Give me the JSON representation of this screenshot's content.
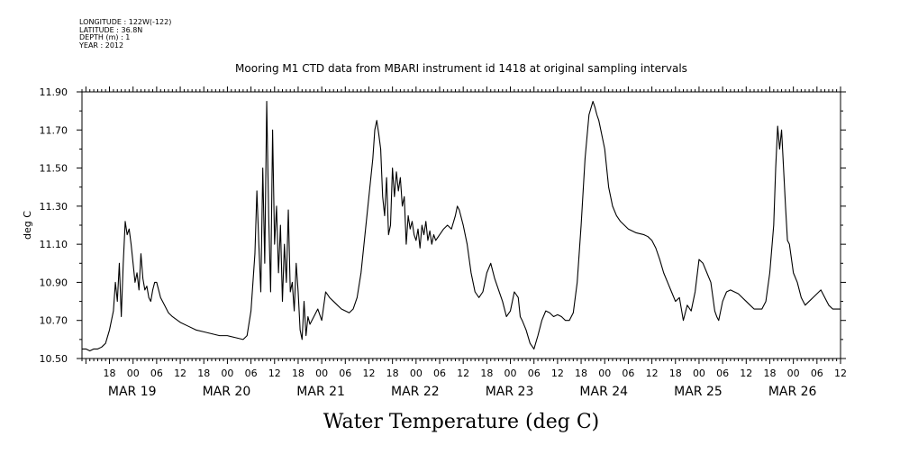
{
  "meta": {
    "longitude": "LONGITUDE : 122W(-122)",
    "latitude": "LATITUDE : 36.8N",
    "depth": "DEPTH (m) : 1",
    "year": "YEAR : 2012"
  },
  "chart_data": {
    "type": "line",
    "title": "Mooring M1 CTD data from MBARI instrument id 1418 at original sampling intervals",
    "xlabel": "Water Temperature (deg C)",
    "ylabel": "deg C",
    "ylim": [
      10.5,
      11.9
    ],
    "yticks": [
      "10.50",
      "10.70",
      "10.90",
      "11.10",
      "11.30",
      "11.50",
      "11.70",
      "11.90"
    ],
    "xlim_hours_from_mar19_00": [
      -13,
      180
    ],
    "xtick_hours": [
      "18",
      "00",
      "06",
      "12",
      "18",
      "00",
      "06",
      "12",
      "18",
      "00",
      "06",
      "12",
      "18",
      "00",
      "06",
      "12",
      "18",
      "00",
      "06",
      "12",
      "18",
      "00",
      "06",
      "12",
      "18",
      "00",
      "06",
      "12",
      "18",
      "00",
      "06",
      "12"
    ],
    "day_labels": [
      "MAR 19",
      "MAR 20",
      "MAR 21",
      "MAR 22",
      "MAR 23",
      "MAR 24",
      "MAR 25",
      "MAR 26"
    ],
    "series": [
      {
        "color": "#000000",
        "points": [
          [
            -13,
            10.55
          ],
          [
            -12,
            10.55
          ],
          [
            -11,
            10.54
          ],
          [
            -10,
            10.55
          ],
          [
            -9,
            10.55
          ],
          [
            -8,
            10.56
          ],
          [
            -7,
            10.58
          ],
          [
            -6,
            10.65
          ],
          [
            -5,
            10.75
          ],
          [
            -4.5,
            10.9
          ],
          [
            -4,
            10.8
          ],
          [
            -3.5,
            11.0
          ],
          [
            -3,
            10.72
          ],
          [
            -2.5,
            11.0
          ],
          [
            -2,
            11.22
          ],
          [
            -1.5,
            11.15
          ],
          [
            -1,
            11.18
          ],
          [
            -0.5,
            11.1
          ],
          [
            0,
            11.0
          ],
          [
            0.5,
            10.9
          ],
          [
            1,
            10.95
          ],
          [
            1.5,
            10.86
          ],
          [
            2,
            11.05
          ],
          [
            2.5,
            10.92
          ],
          [
            3,
            10.86
          ],
          [
            3.5,
            10.88
          ],
          [
            4,
            10.82
          ],
          [
            4.5,
            10.8
          ],
          [
            5,
            10.86
          ],
          [
            5.5,
            10.9
          ],
          [
            6,
            10.9
          ],
          [
            7,
            10.82
          ],
          [
            8,
            10.78
          ],
          [
            9,
            10.74
          ],
          [
            10,
            10.72
          ],
          [
            12,
            10.69
          ],
          [
            14,
            10.67
          ],
          [
            16,
            10.65
          ],
          [
            18,
            10.64
          ],
          [
            20,
            10.63
          ],
          [
            22,
            10.62
          ],
          [
            24,
            10.62
          ],
          [
            26,
            10.61
          ],
          [
            28,
            10.6
          ],
          [
            29,
            10.62
          ],
          [
            30,
            10.75
          ],
          [
            30.5,
            10.9
          ],
          [
            31,
            11.05
          ],
          [
            31.5,
            11.38
          ],
          [
            32,
            11.1
          ],
          [
            32.5,
            10.85
          ],
          [
            33,
            11.5
          ],
          [
            33.5,
            11.0
          ],
          [
            34,
            11.85
          ],
          [
            34.5,
            11.25
          ],
          [
            35,
            10.85
          ],
          [
            35.5,
            11.7
          ],
          [
            36,
            11.1
          ],
          [
            36.5,
            11.3
          ],
          [
            37,
            10.95
          ],
          [
            37.5,
            11.2
          ],
          [
            38,
            10.8
          ],
          [
            38.5,
            11.1
          ],
          [
            39,
            10.9
          ],
          [
            39.5,
            11.28
          ],
          [
            40,
            10.85
          ],
          [
            40.5,
            10.9
          ],
          [
            41,
            10.75
          ],
          [
            41.5,
            11.0
          ],
          [
            42,
            10.85
          ],
          [
            42.5,
            10.65
          ],
          [
            43,
            10.6
          ],
          [
            43.5,
            10.8
          ],
          [
            44,
            10.62
          ],
          [
            44.5,
            10.72
          ],
          [
            45,
            10.68
          ],
          [
            46,
            10.72
          ],
          [
            47,
            10.76
          ],
          [
            48,
            10.7
          ],
          [
            49,
            10.85
          ],
          [
            50,
            10.82
          ],
          [
            51,
            10.8
          ],
          [
            52,
            10.78
          ],
          [
            53,
            10.76
          ],
          [
            54,
            10.75
          ],
          [
            55,
            10.74
          ],
          [
            56,
            10.76
          ],
          [
            57,
            10.82
          ],
          [
            58,
            10.95
          ],
          [
            59,
            11.15
          ],
          [
            60,
            11.35
          ],
          [
            61,
            11.55
          ],
          [
            61.5,
            11.7
          ],
          [
            62,
            11.75
          ],
          [
            62.5,
            11.68
          ],
          [
            63,
            11.6
          ],
          [
            63.5,
            11.35
          ],
          [
            64,
            11.25
          ],
          [
            64.5,
            11.45
          ],
          [
            65,
            11.15
          ],
          [
            65.5,
            11.2
          ],
          [
            66,
            11.5
          ],
          [
            66.5,
            11.35
          ],
          [
            67,
            11.48
          ],
          [
            67.5,
            11.38
          ],
          [
            68,
            11.45
          ],
          [
            68.5,
            11.3
          ],
          [
            69,
            11.35
          ],
          [
            69.5,
            11.1
          ],
          [
            70,
            11.25
          ],
          [
            70.5,
            11.18
          ],
          [
            71,
            11.22
          ],
          [
            71.5,
            11.15
          ],
          [
            72,
            11.12
          ],
          [
            72.5,
            11.18
          ],
          [
            73,
            11.08
          ],
          [
            73.5,
            11.2
          ],
          [
            74,
            11.15
          ],
          [
            74.5,
            11.22
          ],
          [
            75,
            11.12
          ],
          [
            75.5,
            11.17
          ],
          [
            76,
            11.1
          ],
          [
            76.5,
            11.15
          ],
          [
            77,
            11.12
          ],
          [
            78,
            11.15
          ],
          [
            79,
            11.18
          ],
          [
            80,
            11.2
          ],
          [
            81,
            11.18
          ],
          [
            82,
            11.25
          ],
          [
            82.5,
            11.3
          ],
          [
            83,
            11.28
          ],
          [
            84,
            11.2
          ],
          [
            85,
            11.1
          ],
          [
            86,
            10.95
          ],
          [
            87,
            10.85
          ],
          [
            88,
            10.82
          ],
          [
            89,
            10.85
          ],
          [
            90,
            10.95
          ],
          [
            91,
            11.0
          ],
          [
            92,
            10.92
          ],
          [
            93,
            10.86
          ],
          [
            94,
            10.8
          ],
          [
            95,
            10.72
          ],
          [
            96,
            10.75
          ],
          [
            97,
            10.85
          ],
          [
            98,
            10.82
          ],
          [
            98.5,
            10.72
          ],
          [
            99,
            10.7
          ],
          [
            100,
            10.65
          ],
          [
            101,
            10.58
          ],
          [
            102,
            10.55
          ],
          [
            103,
            10.62
          ],
          [
            104,
            10.7
          ],
          [
            105,
            10.75
          ],
          [
            106,
            10.74
          ],
          [
            107,
            10.72
          ],
          [
            108,
            10.73
          ],
          [
            109,
            10.72
          ],
          [
            110,
            10.7
          ],
          [
            111,
            10.7
          ],
          [
            112,
            10.74
          ],
          [
            113,
            10.9
          ],
          [
            114,
            11.2
          ],
          [
            115,
            11.55
          ],
          [
            116,
            11.78
          ],
          [
            117,
            11.85
          ],
          [
            117.5,
            11.82
          ],
          [
            118,
            11.78
          ],
          [
            118.5,
            11.75
          ],
          [
            119,
            11.7
          ],
          [
            120,
            11.6
          ],
          [
            121,
            11.4
          ],
          [
            122,
            11.3
          ],
          [
            123,
            11.25
          ],
          [
            124,
            11.22
          ],
          [
            125,
            11.2
          ],
          [
            126,
            11.18
          ],
          [
            128,
            11.16
          ],
          [
            130,
            11.15
          ],
          [
            131,
            11.14
          ],
          [
            132,
            11.12
          ],
          [
            133,
            11.08
          ],
          [
            134,
            11.02
          ],
          [
            135,
            10.95
          ],
          [
            136,
            10.9
          ],
          [
            137,
            10.85
          ],
          [
            138,
            10.8
          ],
          [
            139,
            10.82
          ],
          [
            140,
            10.7
          ],
          [
            141,
            10.78
          ],
          [
            142,
            10.75
          ],
          [
            143,
            10.85
          ],
          [
            144,
            11.02
          ],
          [
            145,
            11.0
          ],
          [
            146,
            10.95
          ],
          [
            147,
            10.9
          ],
          [
            148,
            10.75
          ],
          [
            148.5,
            10.72
          ],
          [
            149,
            10.7
          ],
          [
            150,
            10.8
          ],
          [
            151,
            10.85
          ],
          [
            152,
            10.86
          ],
          [
            153,
            10.85
          ],
          [
            154,
            10.84
          ],
          [
            155,
            10.82
          ],
          [
            156,
            10.8
          ],
          [
            157,
            10.78
          ],
          [
            158,
            10.76
          ],
          [
            159,
            10.76
          ],
          [
            160,
            10.76
          ],
          [
            161,
            10.8
          ],
          [
            162,
            10.95
          ],
          [
            163,
            11.2
          ],
          [
            163.5,
            11.5
          ],
          [
            164,
            11.72
          ],
          [
            164.5,
            11.6
          ],
          [
            165,
            11.7
          ],
          [
            165.5,
            11.5
          ],
          [
            166,
            11.3
          ],
          [
            166.5,
            11.12
          ],
          [
            167,
            11.1
          ],
          [
            168,
            10.95
          ],
          [
            169,
            10.9
          ],
          [
            170,
            10.82
          ],
          [
            171,
            10.78
          ],
          [
            172,
            10.8
          ],
          [
            173,
            10.82
          ],
          [
            174,
            10.84
          ],
          [
            175,
            10.86
          ],
          [
            176,
            10.82
          ],
          [
            177,
            10.78
          ],
          [
            178,
            10.76
          ],
          [
            179,
            10.76
          ],
          [
            180,
            10.76
          ]
        ]
      }
    ]
  }
}
